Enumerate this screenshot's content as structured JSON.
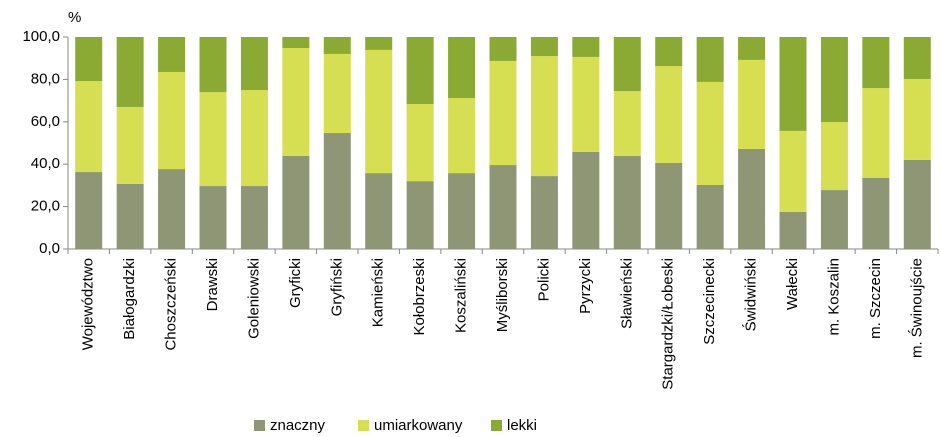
{
  "chart_data": {
    "type": "stacked_bar",
    "y_label": "%",
    "categories": [
      "Województwo",
      "Białogardzki",
      "Choszczeński",
      "Drawski",
      "Goleniowski",
      "Gryficki",
      "Gryfiński",
      "Kamieński",
      "Kołobrzeski",
      "Koszaliński",
      "Myśliborski",
      "Policki",
      "Pyrzycki",
      "Sławieński",
      "Stargardzki/Łobeski",
      "Szczecinecki",
      "Świdwiński",
      "Wałecki",
      "m. Koszalin",
      "m. Szczecin",
      "m. Świnoujście"
    ],
    "series": [
      {
        "name": "znaczny",
        "color": "#8f9676",
        "values": [
          36.3,
          30.7,
          37.7,
          29.7,
          29.7,
          43.9,
          54.7,
          35.8,
          32.0,
          35.8,
          39.6,
          34.4,
          45.8,
          43.9,
          40.6,
          30.2,
          47.2,
          17.5,
          27.8,
          33.5,
          42.0
        ]
      },
      {
        "name": "umiarkowany",
        "color": "#d6de52",
        "values": [
          42.9,
          36.3,
          45.8,
          44.3,
          45.3,
          50.9,
          37.3,
          58.1,
          36.4,
          35.4,
          49.1,
          56.6,
          44.8,
          30.6,
          45.7,
          48.6,
          42.0,
          38.2,
          32.1,
          42.4,
          38.2
        ]
      },
      {
        "name": "lekki",
        "color": "#8aaa34",
        "values": [
          20.8,
          33.0,
          16.5,
          26.0,
          25.0,
          5.2,
          8.0,
          6.1,
          31.6,
          28.8,
          11.3,
          9.0,
          9.4,
          25.5,
          13.7,
          21.2,
          10.8,
          44.3,
          40.1,
          24.1,
          19.8
        ]
      }
    ],
    "ylim": [
      0,
      100
    ],
    "yticks": [
      {
        "value": 0,
        "label": "0,0"
      },
      {
        "value": 20,
        "label": "20,0"
      },
      {
        "value": 40,
        "label": "40,0"
      },
      {
        "value": 60,
        "label": "60,0"
      },
      {
        "value": 80,
        "label": "80,0"
      },
      {
        "value": 100,
        "label": "100,0"
      }
    ],
    "legend": "bottom"
  }
}
